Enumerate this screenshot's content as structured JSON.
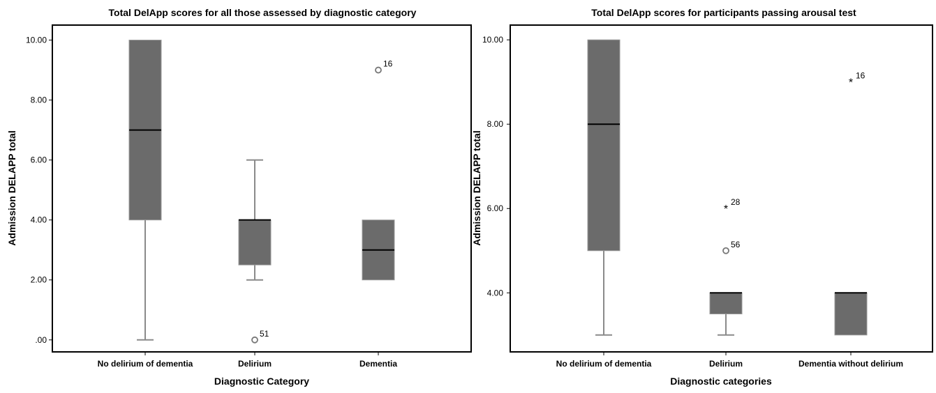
{
  "chart_data": [
    {
      "type": "boxplot",
      "title": "Total DelApp scores for all those assessed by diagnostic category",
      "xlabel": "Diagnostic Category",
      "ylabel": "Admission DELAPP total",
      "ylim": [
        -0.4,
        10.5
      ],
      "yticks": [
        0,
        2,
        4,
        6,
        8,
        10
      ],
      "ytick_labels": [
        ".00",
        "2.00",
        "4.00",
        "6.00",
        "8.00",
        "10.00"
      ],
      "categories": [
        "No delirium of dementia",
        "Delirium",
        "Dementia"
      ],
      "boxes": [
        {
          "whisker_low": 0,
          "q1": 4,
          "median": 7,
          "q3": 10,
          "whisker_high": 10
        },
        {
          "whisker_low": 2,
          "q1": 2.5,
          "median": 4,
          "q3": 4,
          "whisker_high": 6
        },
        {
          "whisker_low": 2,
          "q1": 2,
          "median": 3,
          "q3": 4,
          "whisker_high": 4
        }
      ],
      "outliers": [
        {
          "category": 1,
          "value": 0,
          "label": "51",
          "marker": "circle"
        },
        {
          "category": 2,
          "value": 9,
          "label": "16",
          "marker": "circle"
        }
      ],
      "grid": false,
      "box_color": "#6b6b6b"
    },
    {
      "type": "boxplot",
      "title": "Total DelApp scores for participants passing arousal test",
      "xlabel": "Diagnostic categories",
      "ylabel": "Admission DELAPP total",
      "ylim": [
        2.6,
        10.35
      ],
      "yticks": [
        4,
        6,
        8,
        10
      ],
      "ytick_labels": [
        "4.00",
        "6.00",
        "8.00",
        "10.00"
      ],
      "categories": [
        "No delirium of dementia",
        "Delirium",
        "Dementia without delirium"
      ],
      "boxes": [
        {
          "whisker_low": 3,
          "q1": 5,
          "median": 8,
          "q3": 10,
          "whisker_high": 10
        },
        {
          "whisker_low": 3,
          "q1": 3.5,
          "median": 4,
          "q3": 4,
          "whisker_high": 4
        },
        {
          "whisker_low": 3,
          "q1": 3,
          "median": 4,
          "q3": 4,
          "whisker_high": 4
        }
      ],
      "outliers": [
        {
          "category": 1,
          "value": 6,
          "label": "28",
          "marker": "star"
        },
        {
          "category": 1,
          "value": 5,
          "label": "56",
          "marker": "circle"
        },
        {
          "category": 2,
          "value": 9,
          "label": "16",
          "marker": "star"
        }
      ],
      "grid": false,
      "box_color": "#6b6b6b"
    }
  ]
}
